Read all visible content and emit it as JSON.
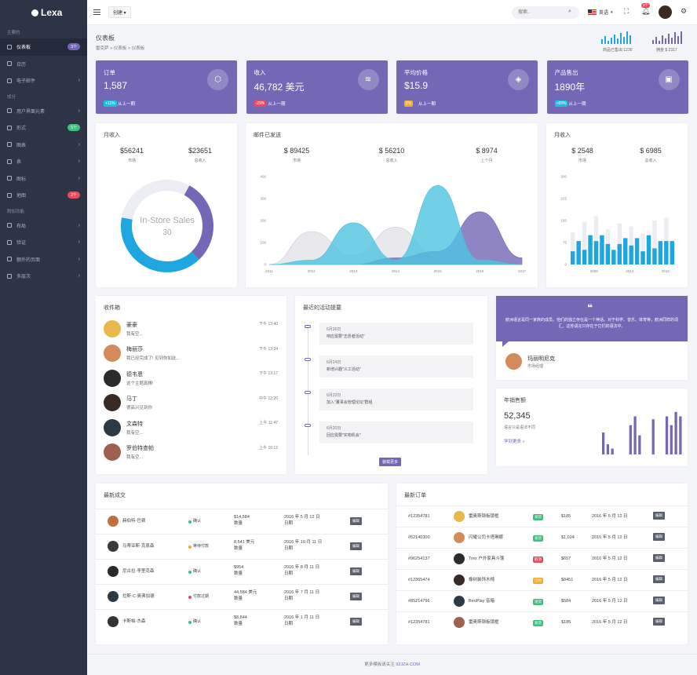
{
  "app": {
    "name": "Lexa"
  },
  "sidebar": {
    "sections": [
      "主要的",
      "成分",
      "附加功能"
    ],
    "items": [
      {
        "label": "仪表板",
        "badge": "3个",
        "badge_color": "#7367b6",
        "chevron": false
      },
      {
        "label": "日历",
        "badge": "",
        "badge_color": "",
        "chevron": false
      },
      {
        "label": "电子邮件",
        "badge": "",
        "badge_color": "",
        "chevron": true
      },
      {
        "label": "用户界面元素",
        "badge": "",
        "badge_color": "",
        "chevron": true
      },
      {
        "label": "形式",
        "badge": "5个",
        "badge_color": "#3fbf7f",
        "chevron": false
      },
      {
        "label": "图表",
        "badge": "",
        "badge_color": "",
        "chevron": true
      },
      {
        "label": "表",
        "badge": "",
        "badge_color": "",
        "chevron": true
      },
      {
        "label": "图标",
        "badge": "",
        "badge_color": "",
        "chevron": true
      },
      {
        "label": "地图",
        "badge": "2个",
        "badge_color": "#e84a5f",
        "chevron": false
      },
      {
        "label": "布局",
        "badge": "",
        "badge_color": "",
        "chevron": true
      },
      {
        "label": "验证",
        "badge": "",
        "badge_color": "",
        "chevron": true
      },
      {
        "label": "额外的页面",
        "badge": "",
        "badge_color": "",
        "chevron": true
      },
      {
        "label": "多层次",
        "badge": "",
        "badge_color": "",
        "chevron": true
      }
    ]
  },
  "topbar": {
    "create": "创建",
    "search_placeholder": "搜索..",
    "language": "英语",
    "notif_badge": "3个"
  },
  "page": {
    "title": "仪表板",
    "breadcrumb": [
      "雷克萨",
      "仪表板",
      "仪表板"
    ]
  },
  "header_stats": [
    {
      "label": "商品已售出 1230",
      "values": [
        6,
        10,
        4,
        8,
        12,
        7,
        14,
        9,
        16,
        11
      ]
    },
    {
      "label": "佣金 $ 2317",
      "values": [
        5,
        9,
        4,
        11,
        7,
        13,
        8,
        15,
        10,
        16
      ]
    }
  ],
  "stats": [
    {
      "title": "订单",
      "value": "1,587",
      "badge": "+11%",
      "badge_color": "#1ec0e0",
      "footer": "从上一期",
      "icon": "⬡"
    },
    {
      "title": "收入",
      "value": "46,782 美元",
      "badge": "-29%",
      "badge_color": "#e84a5f",
      "footer": "从上一期",
      "icon": "≋"
    },
    {
      "title": "平均价格",
      "value": "$15.9",
      "badge": "0%",
      "badge_color": "#f0ad2f",
      "footer": "从上一期",
      "icon": "◈"
    },
    {
      "title": "产品售出",
      "value": "1890年",
      "badge": "+89%",
      "badge_color": "#1ec0e0",
      "footer": "从上一期",
      "icon": "▣"
    }
  ],
  "monthly_revenue": {
    "title": "月收入",
    "kpis": [
      {
        "value": "$56241",
        "label": "市场"
      },
      {
        "value": "$23651",
        "label": "总收入"
      }
    ],
    "donut_label": "In-Store Sales",
    "donut_value": "30"
  },
  "email_sent": {
    "title": "邮件已发送",
    "kpis": [
      {
        "value": "$ 89425",
        "label": "市场"
      },
      {
        "value": "$ 56210",
        "label": "总收入"
      },
      {
        "value": "$ 8974",
        "label": "上个月"
      }
    ]
  },
  "monthly_revenue_2": {
    "title": "月收入",
    "kpis": [
      {
        "value": "$ 2548",
        "label": "市场"
      },
      {
        "value": "$ 6985",
        "label": "总收入"
      }
    ]
  },
  "chart_data": [
    {
      "type": "pie",
      "title": "In-Store Sales",
      "values": [
        {
          "label": "In-Store Sales",
          "value": 30,
          "color": "#7367b6"
        },
        {
          "label": "Download Sales",
          "value": 40,
          "color": "#1ea6e0"
        },
        {
          "label": "Mail-Order Sales",
          "value": 30,
          "color": "#ebedf2"
        }
      ],
      "center_label": "In-Store Sales",
      "center_value": "30"
    },
    {
      "type": "area",
      "title": "邮件已发送",
      "x": [
        2011,
        2012,
        2013,
        2014,
        2015,
        2016,
        2017
      ],
      "ylim": [
        0,
        400
      ],
      "yticks": [
        0,
        100,
        200,
        300,
        400
      ],
      "xticks": [
        "2011",
        "2012",
        "2013",
        "2014",
        "2015",
        "2016",
        "2017"
      ],
      "series": [
        {
          "name": "A",
          "color": "#e3e3e8",
          "values": [
            0,
            150,
            40,
            170,
            30,
            0,
            0
          ]
        },
        {
          "name": "B",
          "color": "#7367b6",
          "values": [
            0,
            0,
            0,
            30,
            60,
            240,
            30
          ]
        },
        {
          "name": "C",
          "color": "#4dc3e0",
          "values": [
            0,
            20,
            190,
            20,
            360,
            20,
            0
          ]
        }
      ]
    },
    {
      "type": "bar",
      "title": "月收入",
      "categories": [
        "2007",
        "2007",
        "2008",
        "2008",
        "2009",
        "2009",
        "2010",
        "2010",
        "2011",
        "2011",
        "2012",
        "2012",
        "2013",
        "2013",
        "2014",
        "2014",
        "2015",
        "2015"
      ],
      "xticks": [
        "2008",
        "2012",
        "2016"
      ],
      "ylim": [
        0,
        300
      ],
      "yticks": [
        0,
        75,
        150,
        225,
        300
      ],
      "series": [
        {
          "name": "A",
          "color": "#1ea6e0",
          "values": [
            45,
            80,
            50,
            100,
            80,
            100,
            70,
            50,
            70,
            90,
            65,
            90,
            45,
            100,
            55,
            80,
            80,
            80
          ]
        },
        {
          "name": "B",
          "color": "#ebedf2",
          "values": [
            110,
            0,
            145,
            0,
            165,
            0,
            120,
            0,
            140,
            0,
            130,
            0,
            105,
            0,
            150,
            0,
            160,
            0
          ]
        }
      ]
    },
    {
      "type": "bar",
      "title": "年销售额",
      "categories": [
        "1",
        "2",
        "3",
        "4",
        "5",
        "6",
        "7",
        "8",
        "9",
        "10",
        "11",
        "12",
        "13",
        "14",
        "15",
        "16",
        "17",
        "18"
      ],
      "ylim": [
        0,
        60
      ],
      "series": [
        {
          "name": "sales",
          "color": "#7367b6",
          "values": [
            30,
            14,
            8,
            0,
            0,
            0,
            40,
            52,
            26,
            0,
            0,
            48,
            0,
            0,
            52,
            40,
            58,
            52
          ]
        }
      ]
    }
  ],
  "inbox": {
    "title": "收件箱",
    "items": [
      {
        "name": "豪豪",
        "msg": "我有空...",
        "time": "下午 13:40",
        "color": "#e8b84a"
      },
      {
        "name": "梅丽莎",
        "msg": "我已经完成了! 见到你如此...",
        "time": "下午 13:34",
        "color": "#d28b5b"
      },
      {
        "name": "德韦恩",
        "msg": "这个主题真棒!",
        "time": "下午 13:17",
        "color": "#2b2b2b"
      },
      {
        "name": "马丁",
        "msg": "很高兴见到你",
        "time": "中午 12:20",
        "color": "#3a2a25"
      },
      {
        "name": "文森特",
        "msg": "我有空...",
        "time": "上午 11:47",
        "color": "#2b3a45"
      },
      {
        "name": "罗伯特查帕",
        "msg": "我有空...",
        "time": "上午 10:12",
        "color": "#a06050"
      }
    ]
  },
  "activity": {
    "title": "最近的活动提要",
    "items": [
      {
        "date": "6月26日",
        "text": "响应需要\"志愿者活动\""
      },
      {
        "date": "6月24日",
        "text": "新增兴趣\"义工活动\""
      },
      {
        "date": "6月23日",
        "text": "加入\"董事会管理论坛\"群组"
      },
      {
        "date": "6月20日",
        "text": "回应需要\"实物机会\""
      }
    ],
    "button": "装载更多"
  },
  "testimonial": {
    "quote": "欧洲语言是同一家族的成员。他们的独立存在是一个神话。对于科学、音乐、体育等，欧洲同样的词汇。这些语言只存在于它们的语法中。",
    "name": "玛丽明尼克",
    "role": "市场经理"
  },
  "yearly_sales": {
    "title": "年销售额",
    "value": "52,345",
    "subtitle": "语言只是语法不同",
    "link": "学到更多 »"
  },
  "latest_trans": {
    "title": "最新成交",
    "rows": [
      {
        "name": "赫伯特·巴顿",
        "status": "确认",
        "status_color": "#3fbf7f",
        "amount": "$14,584",
        "amount_sub": "数量",
        "date": "2016 年 5 月 12 日",
        "date_sub": "日期",
        "edit": "编辑",
        "color": "#c07040"
      },
      {
        "name": "马蒂亚斯·克恩森",
        "status": "等待付款",
        "status_color": "#f0ad2f",
        "amount": "8,541 美元",
        "amount_sub": "数量",
        "date": "2016 年 10 月 11 日",
        "date_sub": "日期",
        "edit": "编辑",
        "color": "#3a3a3a"
      },
      {
        "name": "尼古拉·李里克森",
        "status": "确认",
        "status_color": "#3fbf7f",
        "amount": "$954",
        "amount_sub": "数量",
        "date": "2016 年 8 月 11 日",
        "date_sub": "日期",
        "edit": "编辑",
        "color": "#2a2a2a"
      },
      {
        "name": "拉斯·C·奥弗加德",
        "status": "付款过期",
        "status_color": "#e84a5f",
        "amount": "44,584 美元",
        "amount_sub": "数量",
        "date": "2016 年 7 月 11 日",
        "date_sub": "日期",
        "edit": "编辑",
        "color": "#2b3a45"
      },
      {
        "name": "卡斯帕·杰森",
        "status": "确认",
        "status_color": "#3fbf7f",
        "amount": "$8,844",
        "amount_sub": "数量",
        "date": "2016 年 1 月 11 日",
        "date_sub": "日期",
        "edit": "编辑",
        "color": "#333"
      }
    ]
  },
  "latest_orders": {
    "title": "最新订单",
    "rows": [
      {
        "id": "#12354781",
        "name": "雷奥斯钢板镜框",
        "status": "发货",
        "status_color": "#3fbf7f",
        "amount": "$185",
        "date": "2016 年 5 月 12 日",
        "edit": "编辑",
        "color": "#e8b84a"
      },
      {
        "id": "#52140300",
        "name": "闪耀公司卡塔琳娜",
        "status": "发货",
        "status_color": "#3fbf7f",
        "amount": "$1,024",
        "date": "2016 年 5 月 12 日",
        "edit": "编辑",
        "color": "#d28b5b"
      },
      {
        "id": "#96254137",
        "name": "Trex 户外家具斗篷",
        "status": "取消",
        "status_color": "#e84a5f",
        "amount": "$657",
        "date": "2016 年 5 月 12 日",
        "edit": "编辑",
        "color": "#2b2b2b"
      },
      {
        "id": "#12365474",
        "name": "橡树装饰木椅",
        "status": "已付",
        "status_color": "#f0ad2f",
        "amount": "$8451",
        "date": "2016 年 5 月 12 日",
        "edit": "编辑",
        "color": "#3a2a25"
      },
      {
        "id": "#85214796",
        "name": "BeoPlay 音箱",
        "status": "发货",
        "status_color": "#3fbf7f",
        "amount": "$584",
        "date": "2016 年 5 月 12 日",
        "edit": "编辑",
        "color": "#2b3a45"
      },
      {
        "id": "#12354781",
        "name": "雷奥斯钢板镜框",
        "status": "发货",
        "status_color": "#3fbf7f",
        "amount": "$185",
        "date": "2016 年 5 月 12 日",
        "edit": "编辑",
        "color": "#a06050"
      }
    ]
  },
  "footer": {
    "text": "更多模板请关注",
    "link": "92JZH.COM"
  }
}
